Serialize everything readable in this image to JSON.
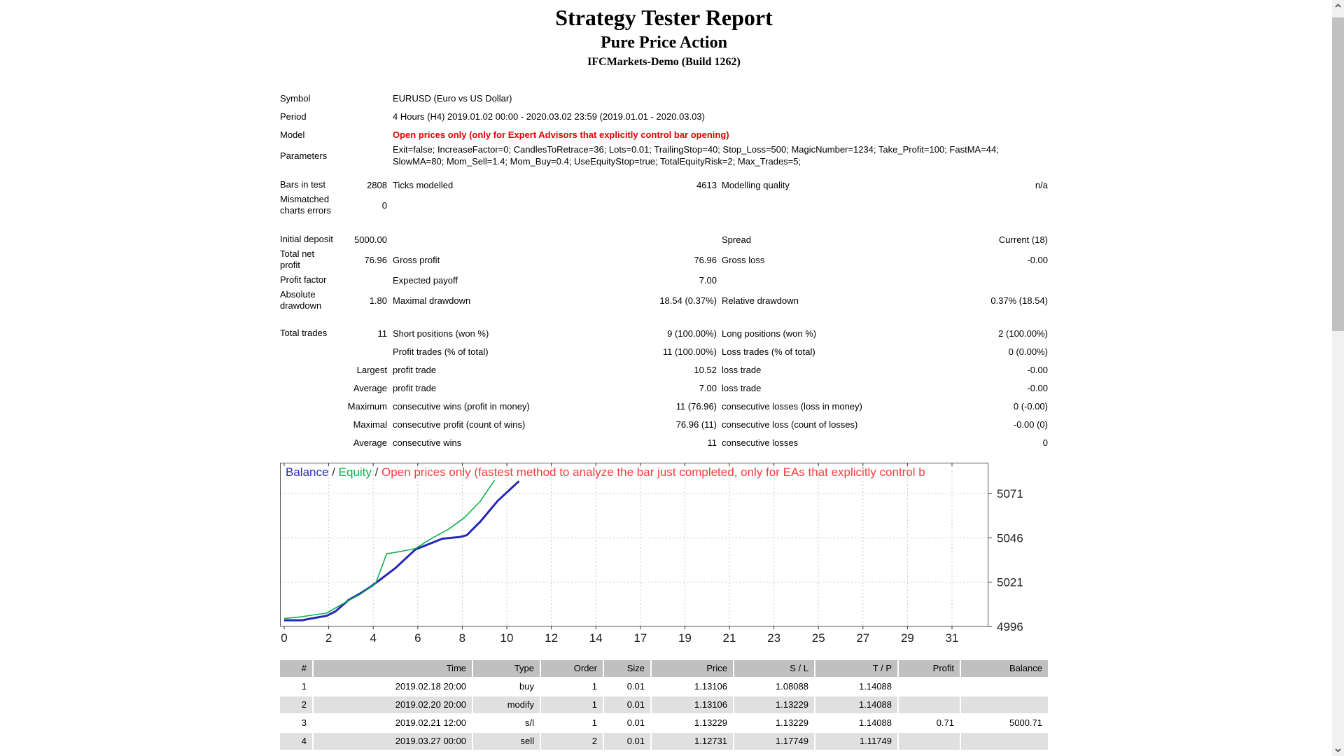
{
  "header": {
    "title": "Strategy Tester Report",
    "subtitle": "Pure Price Action",
    "server": "IFCMarkets-Demo (Build 1262)"
  },
  "info_rows": [
    {
      "label": "Symbol",
      "value": "EURUSD (Euro vs US Dollar)",
      "style": "plain"
    },
    {
      "label": "Period",
      "value": "4 Hours (H4) 2019.01.02 00:00 - 2020.03.02 23:59 (2019.01.01 - 2020.03.03)",
      "style": "plain"
    },
    {
      "label": "Model",
      "value": "Open prices only (only for Expert Advisors that explicitly control bar opening)",
      "style": "red"
    },
    {
      "label": "Parameters",
      "value": "Exit=false; IncreaseFactor=0; CandlesToRetrace=36; Lots=0.01; TrailingStop=40; Stop_Loss=500; MagicNumber=1234; Take_Profit=100; FastMA=44; SlowMA=80; Mom_Sell=1.4; Mom_Buy=0.4; UseEquityStop=true; TotalEquityRisk=2; Max_Trades=5;",
      "style": "plain"
    }
  ],
  "stats_rows": [
    {
      "cells": [
        "Bars in test",
        "2808",
        "Ticks modelled",
        "4613",
        "Modelling quality",
        "n/a"
      ],
      "gap": ""
    },
    {
      "cells": [
        "Mismatched\ncharts errors",
        "0",
        "",
        "",
        "",
        ""
      ],
      "gap": ""
    },
    {
      "cells": [
        "Initial deposit",
        "5000.00",
        "",
        "",
        "Spread",
        "Current (18)"
      ],
      "gap": "gap20"
    },
    {
      "cells": [
        "Total net\nprofit",
        "76.96",
        "Gross profit",
        "76.96",
        "Gross loss",
        "-0.00"
      ],
      "gap": ""
    },
    {
      "cells": [
        "Profit factor",
        "",
        "Expected payoff",
        "7.00",
        "",
        ""
      ],
      "gap": ""
    },
    {
      "cells": [
        "Absolute\ndrawdown",
        "1.80",
        "Maximal drawdown",
        "18.54 (0.37%)",
        "Relative drawdown",
        "0.37% (18.54)"
      ],
      "gap": ""
    },
    {
      "cells": [
        "Total trades",
        "11",
        "Short positions (won %)",
        "9 (100.00%)",
        "Long positions (won %)",
        "2 (100.00%)"
      ],
      "gap": "gap18"
    },
    {
      "cells": [
        "",
        "",
        "Profit trades (% of total)",
        "11 (100.00%)",
        "Loss trades (% of total)",
        "0 (0.00%)"
      ],
      "gap": ""
    },
    {
      "cells": [
        "",
        "Largest",
        "profit trade",
        "10.52",
        "loss trade",
        "-0.00"
      ],
      "gap": ""
    },
    {
      "cells": [
        "",
        "Average",
        "profit trade",
        "7.00",
        "loss trade",
        "-0.00"
      ],
      "gap": ""
    },
    {
      "cells": [
        "",
        "Maximum",
        "consecutive wins (profit in money)",
        "11 (76.96)",
        "consecutive losses (loss in money)",
        "0 (-0.00)"
      ],
      "gap": ""
    },
    {
      "cells": [
        "",
        "Maximal",
        "consecutive profit (count of wins)",
        "76.96 (11)",
        "consecutive loss (count of losses)",
        "-0.00 (0)"
      ],
      "gap": ""
    },
    {
      "cells": [
        "",
        "Average",
        "consecutive wins",
        "11",
        "consecutive losses",
        "0"
      ],
      "gap": ""
    }
  ],
  "chart_data": {
    "type": "line",
    "title": "",
    "xlabel": "",
    "ylabel": "",
    "legend": [
      {
        "text": "Balance",
        "color": "#2b2bbd"
      },
      {
        "text": " / ",
        "color": "#333333"
      },
      {
        "text": "Equity",
        "color": "#10b050"
      },
      {
        "text": " / ",
        "color": "#333333"
      },
      {
        "text": "Open prices only (fastest method to analyze the bar just completed, only for EAs that explicitly control b",
        "color": "#fd3b3b"
      }
    ],
    "x_tick_labels": [
      "0",
      "2",
      "4",
      "6",
      "8",
      "10",
      "12",
      "14",
      "17",
      "19",
      "21",
      "23",
      "25",
      "27",
      "29",
      "31"
    ],
    "y_tick_labels": [
      "5071",
      "5046",
      "5021",
      "4996"
    ],
    "y_ticks": [
      5071,
      5046,
      5021,
      4996
    ],
    "ylim": [
      4996,
      5088.4
    ],
    "grid": "dashed",
    "legend_position": "top-left-inside",
    "series": [
      {
        "name": "Balance",
        "color": "#2626b8",
        "width": 3,
        "points": [
          [
            0,
            4999.5
          ],
          [
            0.8,
            4999.5
          ],
          [
            1.2,
            5000.5
          ],
          [
            1.9,
            5002
          ],
          [
            2.3,
            5004.5
          ],
          [
            2.9,
            5011
          ],
          [
            3.4,
            5014.5
          ],
          [
            3.9,
            5018.5
          ],
          [
            5.0,
            5029
          ],
          [
            5.9,
            5039.5
          ],
          [
            6.3,
            5041.5
          ],
          [
            7.1,
            5045.5
          ],
          [
            7.9,
            5046.5
          ],
          [
            8.2,
            5047.5
          ],
          [
            8.8,
            5055
          ],
          [
            9.6,
            5067
          ],
          [
            10.55,
            5078
          ]
        ]
      },
      {
        "name": "Equity",
        "color": "#10b050",
        "width": 1.6,
        "points": [
          [
            0,
            5000.5
          ],
          [
            0.8,
            5001.5
          ],
          [
            1.3,
            5002.5
          ],
          [
            1.9,
            5003.5
          ],
          [
            2.8,
            5010
          ],
          [
            3.4,
            5014
          ],
          [
            4.1,
            5020
          ],
          [
            4.6,
            5037
          ],
          [
            5.3,
            5038.5
          ],
          [
            5.9,
            5040
          ],
          [
            6.6,
            5045.5
          ],
          [
            7.4,
            5051
          ],
          [
            8.1,
            5057.5
          ],
          [
            8.8,
            5066.5
          ],
          [
            9.45,
            5078.5
          ]
        ]
      }
    ],
    "colors": {
      "grid": "#c9c9c9",
      "border": "#555555",
      "tick_text": "#222222"
    }
  },
  "trade_table": {
    "headers": [
      "#",
      "Time",
      "Type",
      "Order",
      "Size",
      "Price",
      "S / L",
      "T / P",
      "Profit",
      "Balance"
    ],
    "rows": [
      [
        "1",
        "2019.02.18 20:00",
        "buy",
        "1",
        "0.01",
        "1.13106",
        "1.08088",
        "1.14088",
        "",
        ""
      ],
      [
        "2",
        "2019.02.20 20:00",
        "modify",
        "1",
        "0.01",
        "1.13106",
        "1.13229",
        "1.14088",
        "",
        ""
      ],
      [
        "3",
        "2019.02.21 12:00",
        "s/l",
        "1",
        "0.01",
        "1.13229",
        "1.13229",
        "1.14088",
        "0.71",
        "5000.71"
      ],
      [
        "4",
        "2019.03.27 00:00",
        "sell",
        "2",
        "0.01",
        "1.12731",
        "1.17749",
        "1.11749",
        "",
        ""
      ]
    ]
  },
  "scrollbar": {
    "track": "#f1f1f1",
    "thumb": "#c1c1c1",
    "arrow": "#505050"
  }
}
